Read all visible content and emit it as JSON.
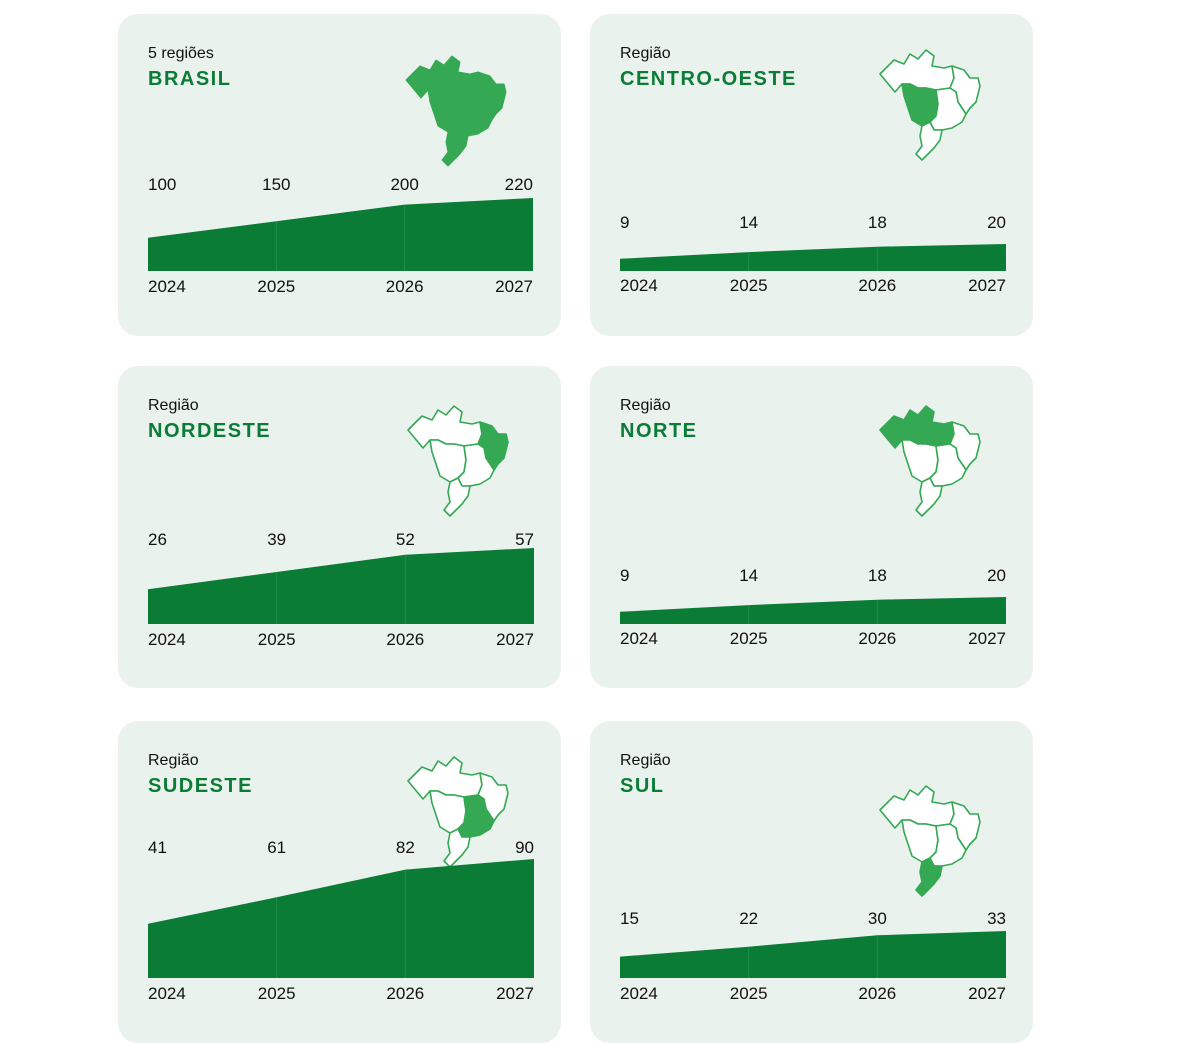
{
  "colors": {
    "accent": "#0a7c36",
    "map_fill": "#34a853",
    "card_bg": "#e9f2ed"
  },
  "cards": [
    {
      "subtitle": "5 regiões",
      "title": "BRASIL",
      "highlight": "all"
    },
    {
      "subtitle": "Região",
      "title": "CENTRO-OESTE",
      "highlight": "centro-oeste"
    },
    {
      "subtitle": "Região",
      "title": "NORDESTE",
      "highlight": "nordeste"
    },
    {
      "subtitle": "Região",
      "title": "NORTE",
      "highlight": "norte"
    },
    {
      "subtitle": "Região",
      "title": "SUDESTE",
      "highlight": "sudeste"
    },
    {
      "subtitle": "Região",
      "title": "SUL",
      "highlight": "sul"
    }
  ],
  "chart_data": [
    {
      "type": "area",
      "title": "BRASIL",
      "x": [
        "2024",
        "2025",
        "2026",
        "2027"
      ],
      "values": [
        100,
        150,
        200,
        220
      ]
    },
    {
      "type": "area",
      "title": "CENTRO-OESTE",
      "x": [
        "2024",
        "2025",
        "2026",
        "2027"
      ],
      "values": [
        9,
        14,
        18,
        20
      ]
    },
    {
      "type": "area",
      "title": "NORDESTE",
      "x": [
        "2024",
        "2025",
        "2026",
        "2027"
      ],
      "values": [
        26,
        39,
        52,
        57
      ]
    },
    {
      "type": "area",
      "title": "NORTE",
      "x": [
        "2024",
        "2025",
        "2026",
        "2027"
      ],
      "values": [
        9,
        14,
        18,
        20
      ]
    },
    {
      "type": "area",
      "title": "SUDESTE",
      "x": [
        "2024",
        "2025",
        "2026",
        "2027"
      ],
      "values": [
        41,
        61,
        82,
        90
      ]
    },
    {
      "type": "area",
      "title": "SUL",
      "x": [
        "2024",
        "2025",
        "2026",
        "2027"
      ],
      "values": [
        15,
        22,
        30,
        33
      ]
    }
  ]
}
